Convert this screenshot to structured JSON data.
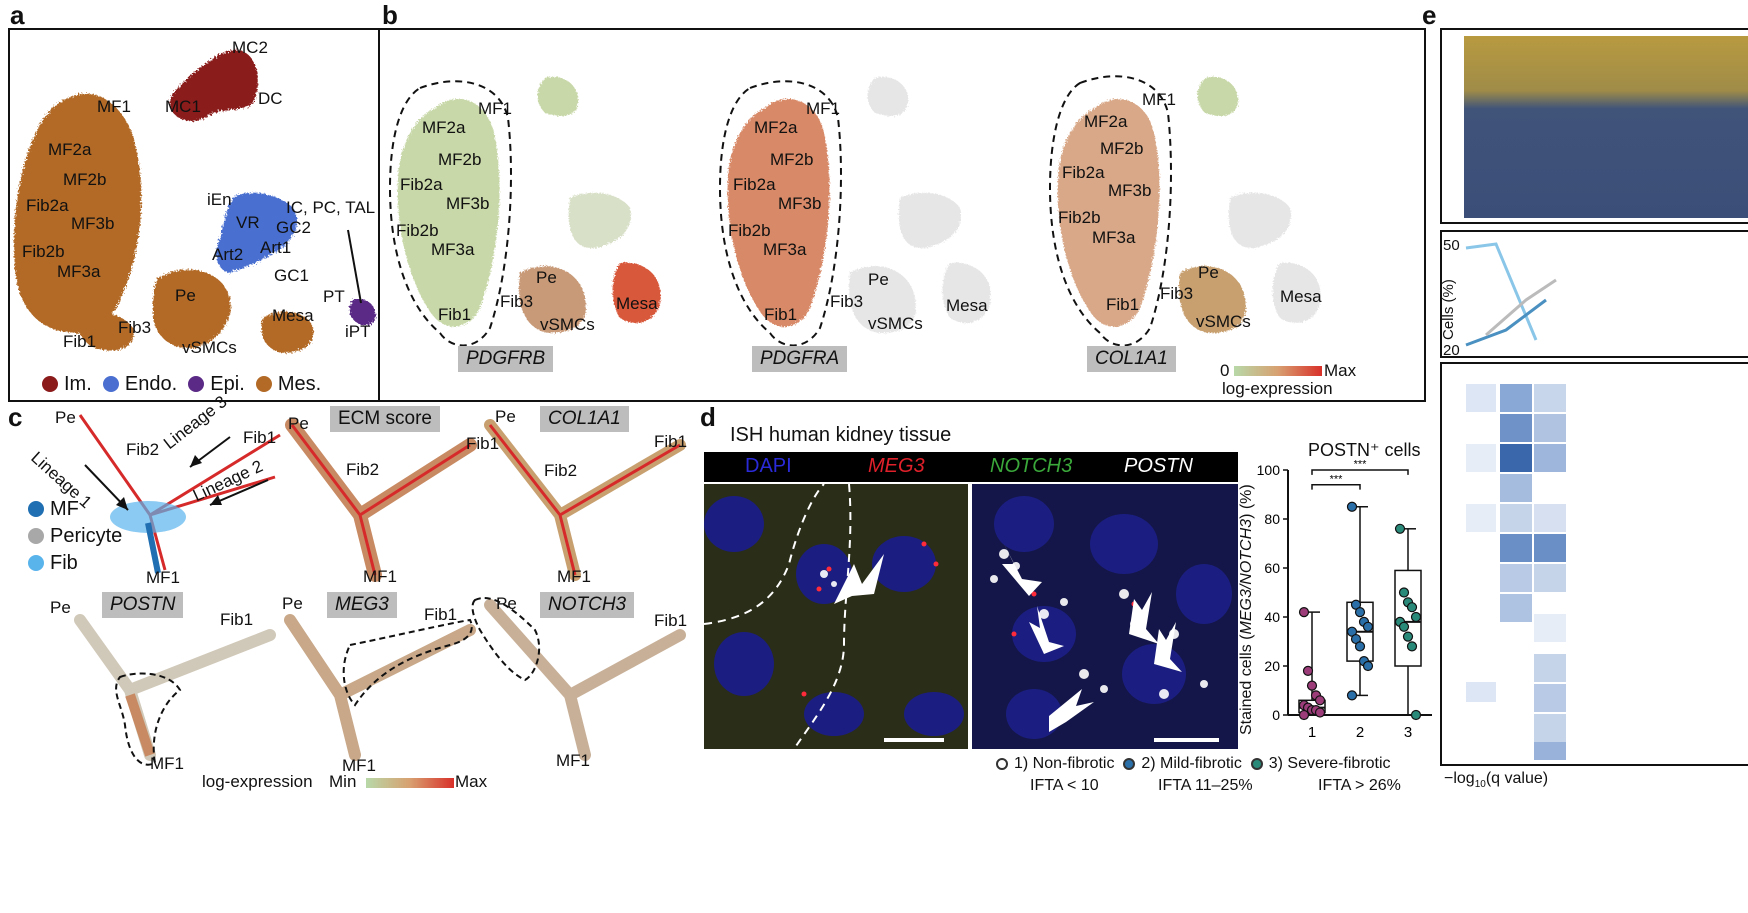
{
  "panels": {
    "a": "a",
    "b": "b",
    "c": "c",
    "d": "d",
    "e": "e"
  },
  "a": {
    "clusters": [
      "MC2",
      "DC",
      "MC1",
      "MF1",
      "MF2a",
      "MF2b",
      "Fib2a",
      "MF3b",
      "Fib2b",
      "MF3a",
      "iEn",
      "VR",
      "IC, PC, TAL",
      "GC2",
      "Art1",
      "Art2",
      "GC1",
      "Pe",
      "PT",
      "Mesa",
      "Fib3",
      "iPT",
      "Fib1",
      "vSMCs"
    ],
    "legend": [
      {
        "label": "Im.",
        "color": "#8b1a1a"
      },
      {
        "label": "Endo.",
        "color": "#4a6fd0"
      },
      {
        "label": "Epi.",
        "color": "#5a2a86"
      },
      {
        "label": "Mes.",
        "color": "#b26a26"
      }
    ]
  },
  "b": {
    "umap1": {
      "gene": "PDGFRB",
      "labels": [
        "MF1",
        "MF2a",
        "MF2b",
        "Fib2a",
        "MF3b",
        "Fib2b",
        "MF3a",
        "Pe",
        "Fib3",
        "Mesa",
        "Fib1",
        "vSMCs"
      ]
    },
    "umap2": {
      "gene": "PDGFRA",
      "labels": [
        "MF1",
        "MF2a",
        "MF2b",
        "Fib2a",
        "MF3b",
        "Fib2b",
        "MF3a",
        "Pe",
        "Fib3",
        "Mesa",
        "Fib1",
        "vSMCs"
      ]
    },
    "umap3": {
      "gene": "COL1A1",
      "labels": [
        "MF1",
        "MF2a",
        "MF2b",
        "Fib2a",
        "MF3b",
        "Fib2b",
        "MF3a",
        "Pe",
        "Fib3",
        "Mesa",
        "Fib1",
        "vSMCs"
      ]
    },
    "scale_min": "0",
    "scale_max": "Max",
    "scale_label": "log-expression"
  },
  "c": {
    "traj_labels": {
      "pe": "Pe",
      "fib1": "Fib1",
      "fib2": "Fib2",
      "mf1": "MF1",
      "lineage1": "Lineage 1",
      "lineage2": "Lineage 2",
      "lineage3": "Lineage 3"
    },
    "legend": [
      {
        "label": "MF",
        "color": "#1f6fb2"
      },
      {
        "label": "Pericyte",
        "color": "#a8a8a8"
      },
      {
        "label": "Fib",
        "color": "#5ab4ec"
      }
    ],
    "plots": [
      "ECM score",
      "COL1A1",
      "POSTN",
      "MEG3",
      "NOTCH3"
    ],
    "scale_label": "log-expression",
    "scale_min": "Min",
    "scale_max": "Max"
  },
  "d": {
    "title": "ISH human kidney tissue",
    "channels": [
      {
        "label": "DAPI",
        "color": "#2a2ad8"
      },
      {
        "label": "MEG3",
        "color": "#e0202a"
      },
      {
        "label": "NOTCH3",
        "color": "#3aa83a"
      },
      {
        "label": "POSTN",
        "color": "#ffffff"
      }
    ],
    "box_title": "POSTN⁺ cells",
    "ylabel_a": "Stained cells (",
    "ylabel_b": "MEG3/NOTCH3",
    "ylabel_c": ") (%)",
    "yticks": [
      "0",
      "20",
      "40",
      "60",
      "80",
      "100"
    ],
    "xticks": [
      "1",
      "2",
      "3"
    ],
    "sig": "***",
    "groups": [
      {
        "label": "1) Non-fibrotic",
        "sub": "IFTA < 10"
      },
      {
        "label": "2) Mild-fibrotic",
        "sub": "IFTA 11–25%"
      },
      {
        "label": "3) Severe-fibrotic",
        "sub": "IFTA > 26%"
      }
    ]
  },
  "chart_data": {
    "type": "box",
    "title": "POSTN⁺ cells",
    "ylabel": "Stained cells (MEG3/NOTCH3) (%)",
    "ylim": [
      0,
      100
    ],
    "categories": [
      "1",
      "2",
      "3"
    ],
    "series": [
      {
        "name": "1) Non-fibrotic",
        "color": "#9c3d7a",
        "points": [
          42,
          18,
          12,
          8,
          6,
          4,
          3,
          2,
          2,
          1,
          0
        ],
        "q1": 1,
        "median": 3,
        "q3": 6,
        "min": 0,
        "max": 42
      },
      {
        "name": "2) Mild-fibrotic",
        "color": "#2a6fa8",
        "points": [
          85,
          45,
          42,
          38,
          36,
          34,
          31,
          28,
          22,
          20,
          8
        ],
        "q1": 22,
        "median": 34,
        "q3": 46,
        "min": 8,
        "max": 85
      },
      {
        "name": "3) Severe-fibrotic",
        "color": "#2a8a7a",
        "points": [
          76,
          50,
          46,
          44,
          40,
          38,
          36,
          32,
          28,
          0
        ],
        "q1": 20,
        "median": 38,
        "q3": 59,
        "min": 0,
        "max": 76
      }
    ]
  },
  "e": {
    "ylabel": "Cells (%)",
    "ytop": "50",
    "ybot": "20",
    "xlabel_a": "−log",
    "xlabel_b": "10",
    "xlabel_c": "(q value)"
  }
}
